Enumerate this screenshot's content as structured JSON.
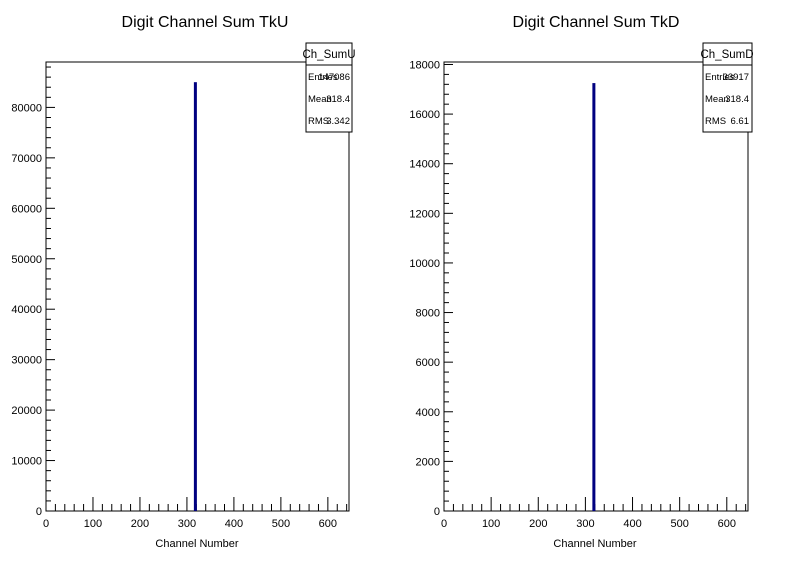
{
  "chart_data": [
    {
      "type": "bar",
      "title": "Digit Channel Sum TkU",
      "xlabel": "Channel Number",
      "ylabel": "",
      "xlim": [
        0,
        645
      ],
      "ylim": [
        0,
        89000
      ],
      "x_ticks": [
        0,
        100,
        200,
        300,
        400,
        500,
        600
      ],
      "y_ticks": [
        0,
        10000,
        20000,
        30000,
        40000,
        50000,
        60000,
        70000,
        80000
      ],
      "x_tick_labels": [
        "0",
        "100",
        "200",
        "300",
        "400",
        "500",
        "600"
      ],
      "y_tick_labels": [
        "0",
        "10000",
        "20000",
        "30000",
        "40000",
        "50000",
        "60000",
        "70000",
        "80000"
      ],
      "bins": [
        {
          "x": 318,
          "value": 85000
        }
      ],
      "bar_color": "#000080",
      "stats": {
        "name": "Ch_SumU",
        "rows": [
          {
            "label": "Entries",
            "value": "147086"
          },
          {
            "label": "Mean",
            "value": "318.4"
          },
          {
            "label": "RMS",
            "value": "3.342"
          }
        ]
      }
    },
    {
      "type": "bar",
      "title": "Digit Channel Sum TkD",
      "xlabel": "Channel Number",
      "ylabel": "",
      "xlim": [
        0,
        645
      ],
      "ylim": [
        0,
        18100
      ],
      "x_ticks": [
        0,
        100,
        200,
        300,
        400,
        500,
        600
      ],
      "y_ticks": [
        0,
        2000,
        4000,
        6000,
        8000,
        10000,
        12000,
        14000,
        16000,
        18000
      ],
      "x_tick_labels": [
        "0",
        "100",
        "200",
        "300",
        "400",
        "500",
        "600"
      ],
      "y_tick_labels": [
        "0",
        "2000",
        "4000",
        "6000",
        "8000",
        "10000",
        "12000",
        "14000",
        "16000",
        "18000"
      ],
      "bins": [
        {
          "x": 318,
          "value": 17250
        }
      ],
      "bar_color": "#000080",
      "stats": {
        "name": "Ch_SumD",
        "rows": [
          {
            "label": "Entries",
            "value": "33917"
          },
          {
            "label": "Mean",
            "value": "318.4"
          },
          {
            "label": "RMS",
            "value": "6.61"
          }
        ]
      }
    }
  ]
}
